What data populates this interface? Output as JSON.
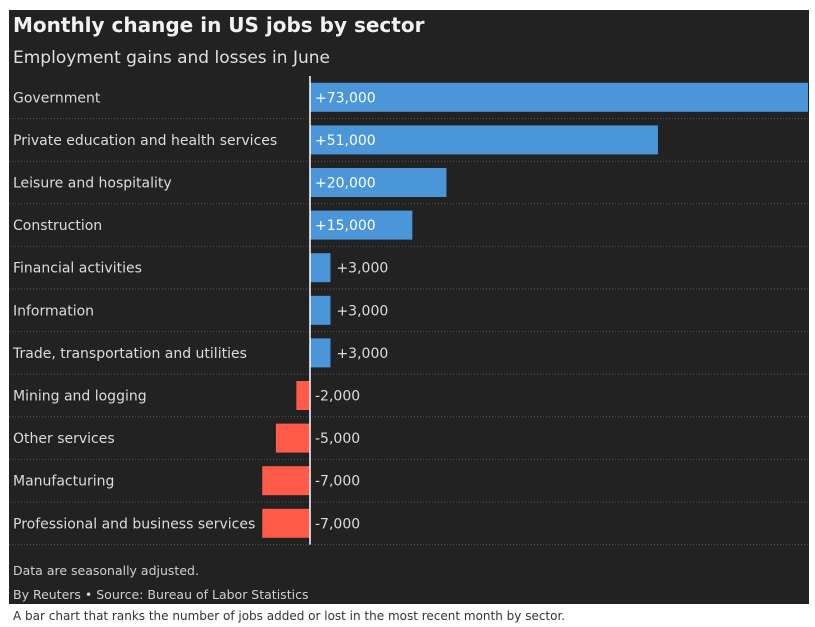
{
  "chart_data": {
    "type": "bar",
    "orientation": "horizontal",
    "title": "Monthly change in US jobs by sector",
    "subtitle": "Employment gains and losses in June",
    "categories": [
      "Government",
      "Private education and health services",
      "Leisure and hospitality",
      "Construction",
      "Financial activities",
      "Information",
      "Trade, transportation and utilities",
      "Mining and logging",
      "Other services",
      "Manufacturing",
      "Professional and business services"
    ],
    "values": [
      73000,
      51000,
      20000,
      15000,
      3000,
      3000,
      3000,
      -2000,
      -5000,
      -7000,
      -7000
    ],
    "value_labels": [
      "+73,000",
      "+51,000",
      "+20,000",
      "+15,000",
      "+3,000",
      "+3,000",
      "+3,000",
      "-2,000",
      "-5,000",
      "-7,000",
      "-7,000"
    ],
    "xlim": [
      -7000,
      73000
    ],
    "colors": {
      "positive": "#4a96d8",
      "negative": "#ff5a4a"
    },
    "grid": false
  },
  "footer": {
    "note": "Data are seasonally adjusted.",
    "source": "By Reuters • Source: Bureau of Labor Statistics"
  },
  "caption": "A bar chart that ranks the number of jobs added or lost in the most recent month by sector."
}
